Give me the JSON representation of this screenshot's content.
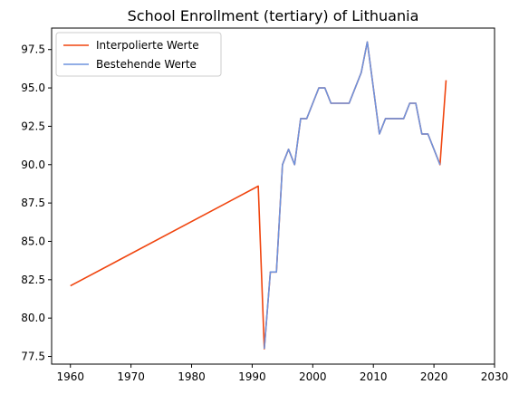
{
  "chart_data": {
    "type": "line",
    "title": "School Enrollment (tertiary) of Lithuania",
    "xlabel": "",
    "ylabel": "",
    "xlim": [
      1956.9,
      2030
    ],
    "ylim": [
      77.0,
      98.9
    ],
    "xticks": [
      1960,
      1970,
      1980,
      1990,
      2000,
      2010,
      2020,
      2030
    ],
    "yticks": [
      77.5,
      80.0,
      82.5,
      85.0,
      87.5,
      90.0,
      92.5,
      95.0,
      97.5
    ],
    "legend_position": "top-left",
    "grid": false,
    "series": [
      {
        "name": "Interpolierte Werte",
        "color": "#f0450f",
        "x": [
          1960,
          1991,
          1992,
          1993,
          1994,
          1995,
          1996,
          1997,
          1998,
          1999,
          2000,
          2001,
          2002,
          2003,
          2004,
          2005,
          2006,
          2007,
          2008,
          2009,
          2010,
          2011,
          2012,
          2013,
          2014,
          2015,
          2016,
          2017,
          2018,
          2019,
          2020,
          2021,
          2022
        ],
        "y": [
          82.1,
          88.6,
          78.0,
          83.0,
          83.0,
          90.0,
          91.0,
          90.0,
          93.0,
          93.0,
          94.0,
          95.0,
          95.0,
          94.0,
          94.0,
          94.0,
          94.0,
          95.0,
          96.0,
          98.0,
          95.0,
          92.0,
          93.0,
          93.0,
          93.0,
          93.0,
          94.0,
          94.0,
          92.0,
          92.0,
          91.0,
          90.0,
          95.5
        ]
      },
      {
        "name": "Bestehende Werte",
        "color": "#6e93dd",
        "x": [
          1992,
          1993,
          1994,
          1995,
          1996,
          1997,
          1998,
          1999,
          2000,
          2001,
          2002,
          2003,
          2004,
          2005,
          2006,
          2007,
          2008,
          2009,
          2010,
          2011,
          2012,
          2013,
          2014,
          2015,
          2016,
          2017,
          2018,
          2019,
          2020,
          2021
        ],
        "y": [
          78.0,
          83.0,
          83.0,
          90.0,
          91.0,
          90.0,
          93.0,
          93.0,
          94.0,
          95.0,
          95.0,
          94.0,
          94.0,
          94.0,
          94.0,
          95.0,
          96.0,
          98.0,
          95.0,
          92.0,
          93.0,
          93.0,
          93.0,
          93.0,
          94.0,
          94.0,
          92.0,
          92.0,
          91.0,
          90.0
        ]
      }
    ]
  }
}
